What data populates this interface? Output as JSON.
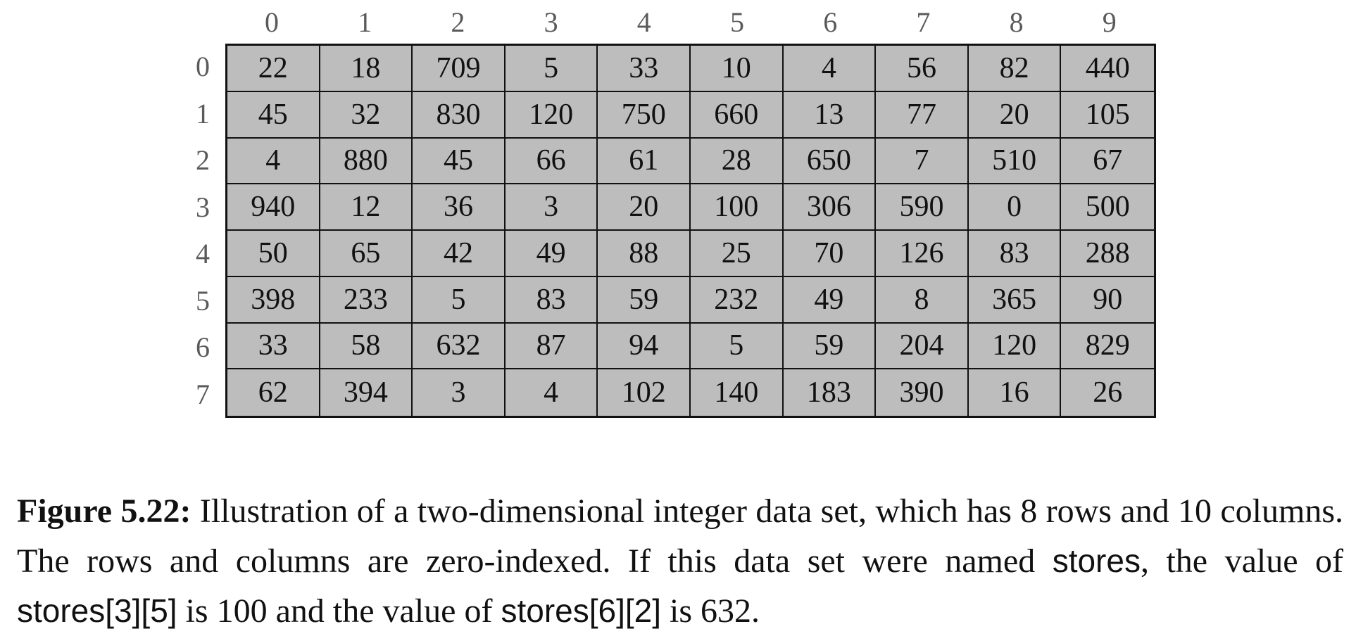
{
  "table": {
    "column_labels": [
      "0",
      "1",
      "2",
      "3",
      "4",
      "5",
      "6",
      "7",
      "8",
      "9"
    ],
    "row_labels": [
      "0",
      "1",
      "2",
      "3",
      "4",
      "5",
      "6",
      "7"
    ],
    "rows": [
      [
        "22",
        "18",
        "709",
        "5",
        "33",
        "10",
        "4",
        "56",
        "82",
        "440"
      ],
      [
        "45",
        "32",
        "830",
        "120",
        "750",
        "660",
        "13",
        "77",
        "20",
        "105"
      ],
      [
        "4",
        "880",
        "45",
        "66",
        "61",
        "28",
        "650",
        "7",
        "510",
        "67"
      ],
      [
        "940",
        "12",
        "36",
        "3",
        "20",
        "100",
        "306",
        "590",
        "0",
        "500"
      ],
      [
        "50",
        "65",
        "42",
        "49",
        "88",
        "25",
        "70",
        "126",
        "83",
        "288"
      ],
      [
        "398",
        "233",
        "5",
        "83",
        "59",
        "232",
        "49",
        "8",
        "365",
        "90"
      ],
      [
        "33",
        "58",
        "632",
        "87",
        "94",
        "5",
        "59",
        "204",
        "120",
        "829"
      ],
      [
        "62",
        "394",
        "3",
        "4",
        "102",
        "140",
        "183",
        "390",
        "16",
        "26"
      ]
    ]
  },
  "caption": {
    "label": "Figure 5.22:",
    "text_1": " Illustration of a two-dimensional integer data set, which has 8 rows and 10 columns.  The rows and columns are zero-indexed.  If this data set were named ",
    "code_1": "stores",
    "text_2": ", the value of ",
    "code_2": "stores[3][5]",
    "text_3": " is 100 and the value of ",
    "code_3": "stores[6][2]",
    "text_4": " is 632."
  },
  "colors": {
    "cell_fill": "#bdbdbd",
    "grid_line": "#111111",
    "axis_label": "#5a5a5a"
  }
}
